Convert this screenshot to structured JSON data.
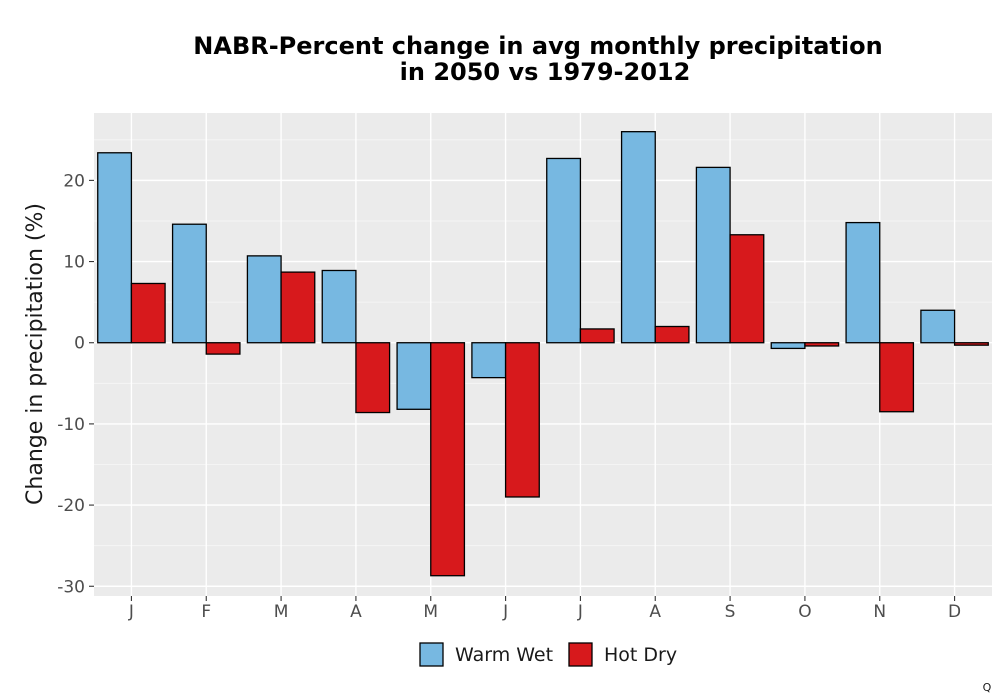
{
  "chart_data": {
    "type": "bar",
    "title_lines": [
      "NABR-Percent change in avg monthly precipitation",
      "in 2050 vs 1979-2012"
    ],
    "ylabel": "Change in precipitation (%)",
    "xlabel": "",
    "categories": [
      "J",
      "F",
      "M",
      "A",
      "M",
      "J",
      "J",
      "A",
      "S",
      "O",
      "N",
      "D"
    ],
    "series": [
      {
        "name": "Warm Wet",
        "color": "#77b8e1",
        "values": [
          23.4,
          14.6,
          10.7,
          8.9,
          -8.2,
          -4.3,
          22.7,
          26.0,
          21.6,
          -0.7,
          14.8,
          4.0
        ]
      },
      {
        "name": "Hot Dry",
        "color": "#d7191c",
        "values": [
          7.3,
          -1.4,
          8.7,
          -8.6,
          -28.7,
          -19.0,
          1.7,
          2.0,
          13.3,
          -0.4,
          -8.5,
          -0.3
        ]
      }
    ],
    "ylim": [
      -31.2,
      28.3
    ],
    "yticks": [
      -30,
      -20,
      -10,
      0,
      10,
      20
    ],
    "grid": true,
    "legend_position": "bottom",
    "panel_background": "#ebebeb"
  },
  "corner_mark": "Q"
}
